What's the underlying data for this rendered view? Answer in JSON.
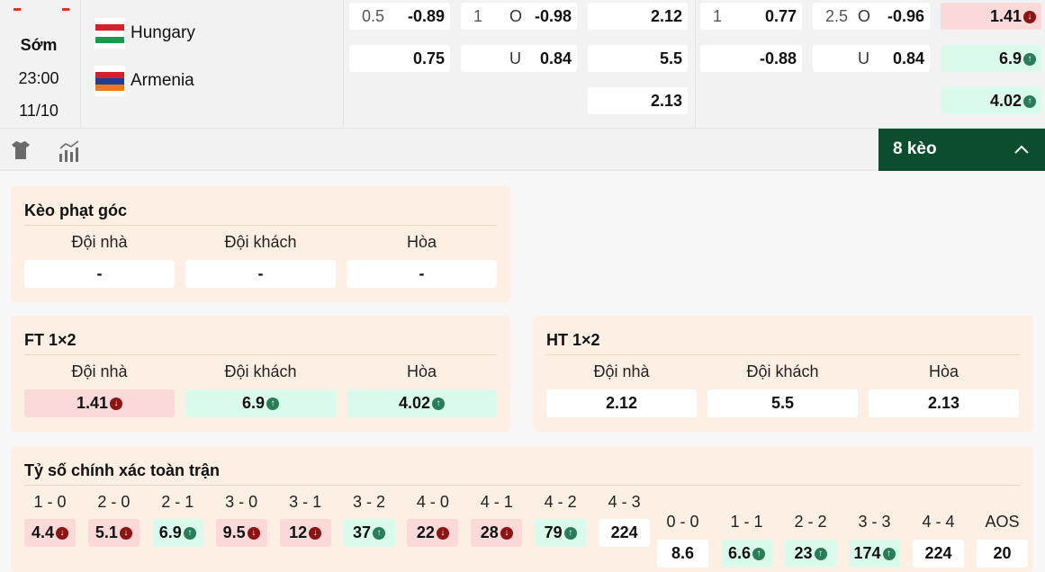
{
  "match": {
    "status": "Sớm",
    "time": "23:00",
    "date": "11/10",
    "home": {
      "name": "Hungary"
    },
    "away": {
      "name": "Armenia"
    },
    "odds": [
      [
        {
          "line": "0.5",
          "odd": "-0.89"
        },
        {
          "line": "1",
          "side": "O",
          "odd": "-0.98"
        },
        {
          "odd": "2.12"
        },
        {
          "line": "1",
          "odd": "0.77"
        },
        {
          "line": "2.5",
          "side": "O",
          "odd": "-0.96"
        },
        {
          "odd": "1.41",
          "trend": "down"
        }
      ],
      [
        {
          "odd": "0.75"
        },
        {
          "side": "U",
          "odd": "0.84"
        },
        {
          "odd": "5.5"
        },
        {
          "odd": "-0.88"
        },
        {
          "side": "U",
          "odd": "0.84"
        },
        {
          "odd": "6.9",
          "trend": "up"
        }
      ],
      [
        null,
        null,
        {
          "odd": "2.13"
        },
        null,
        null,
        {
          "odd": "4.02",
          "trend": "up"
        }
      ]
    ]
  },
  "toolbar": {
    "markets_label": "8 kèo",
    "icons": [
      "jersey-icon",
      "stats-chart-icon"
    ]
  },
  "corner": {
    "title": "Kèo phạt góc",
    "headers": [
      "Đội nhà",
      "Đội khách",
      "Hòa"
    ],
    "values": [
      {
        "v": "-"
      },
      {
        "v": "-"
      },
      {
        "v": "-"
      }
    ]
  },
  "ft": {
    "title": "FT 1×2",
    "headers": [
      "Đội nhà",
      "Đội khách",
      "Hòa"
    ],
    "values": [
      {
        "v": "1.41",
        "trend": "down"
      },
      {
        "v": "6.9",
        "trend": "up"
      },
      {
        "v": "4.02",
        "trend": "up"
      }
    ]
  },
  "ht": {
    "title": "HT 1×2",
    "headers": [
      "Đội nhà",
      "Đội khách",
      "Hòa"
    ],
    "values": [
      {
        "v": "2.12"
      },
      {
        "v": "5.5"
      },
      {
        "v": "2.13"
      }
    ]
  },
  "score": {
    "title": "Tỷ số chính xác toàn trận",
    "home": [
      {
        "s": "1 - 0",
        "v": "4.4",
        "trend": "down"
      },
      {
        "s": "2 - 0",
        "v": "5.1",
        "trend": "down"
      },
      {
        "s": "2 - 1",
        "v": "6.9",
        "trend": "up"
      },
      {
        "s": "3 - 0",
        "v": "9.5",
        "trend": "down"
      },
      {
        "s": "3 - 1",
        "v": "12",
        "trend": "down"
      },
      {
        "s": "3 - 2",
        "v": "37",
        "trend": "up"
      },
      {
        "s": "4 - 0",
        "v": "22",
        "trend": "down"
      },
      {
        "s": "4 - 1",
        "v": "28",
        "trend": "down"
      },
      {
        "s": "4 - 2",
        "v": "79",
        "trend": "up"
      },
      {
        "s": "4 - 3",
        "v": "224"
      }
    ],
    "draw": [
      {
        "s": "0 - 0",
        "v": "8.6"
      },
      {
        "s": "1 - 1",
        "v": "6.6",
        "trend": "up"
      },
      {
        "s": "2 - 2",
        "v": "23",
        "trend": "up"
      },
      {
        "s": "3 - 3",
        "v": "174",
        "trend": "up"
      },
      {
        "s": "4 - 4",
        "v": "224"
      },
      {
        "s": "AOS",
        "v": "20"
      }
    ]
  },
  "colors": {
    "accent": "#0b4d2c",
    "down": "#8b1414",
    "up": "#2b7d5a",
    "down_bg": "#fbd9d9",
    "up_bg": "#dafbec",
    "panel": "#fdefe3"
  }
}
